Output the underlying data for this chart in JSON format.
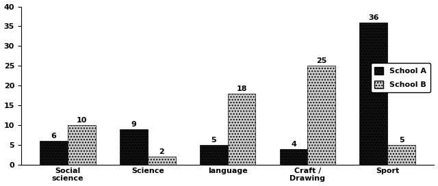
{
  "categories": [
    "Social\nscience",
    "Science",
    "language",
    "Craft /\nDrawing",
    "Sport"
  ],
  "school_a": [
    6,
    9,
    5,
    4,
    36
  ],
  "school_b": [
    10,
    2,
    18,
    25,
    5
  ],
  "color_a": "#111111",
  "color_b": "#cccccc",
  "hatch_a": "....",
  "hatch_b": "....",
  "ylim": [
    0,
    40
  ],
  "yticks": [
    0,
    5,
    10,
    15,
    20,
    25,
    30,
    35,
    40
  ],
  "legend_a": "School A",
  "legend_b": "School B",
  "bar_width": 0.35,
  "figsize": [
    6.4,
    2.72
  ],
  "dpi": 100,
  "bg_color": "#ffffff"
}
